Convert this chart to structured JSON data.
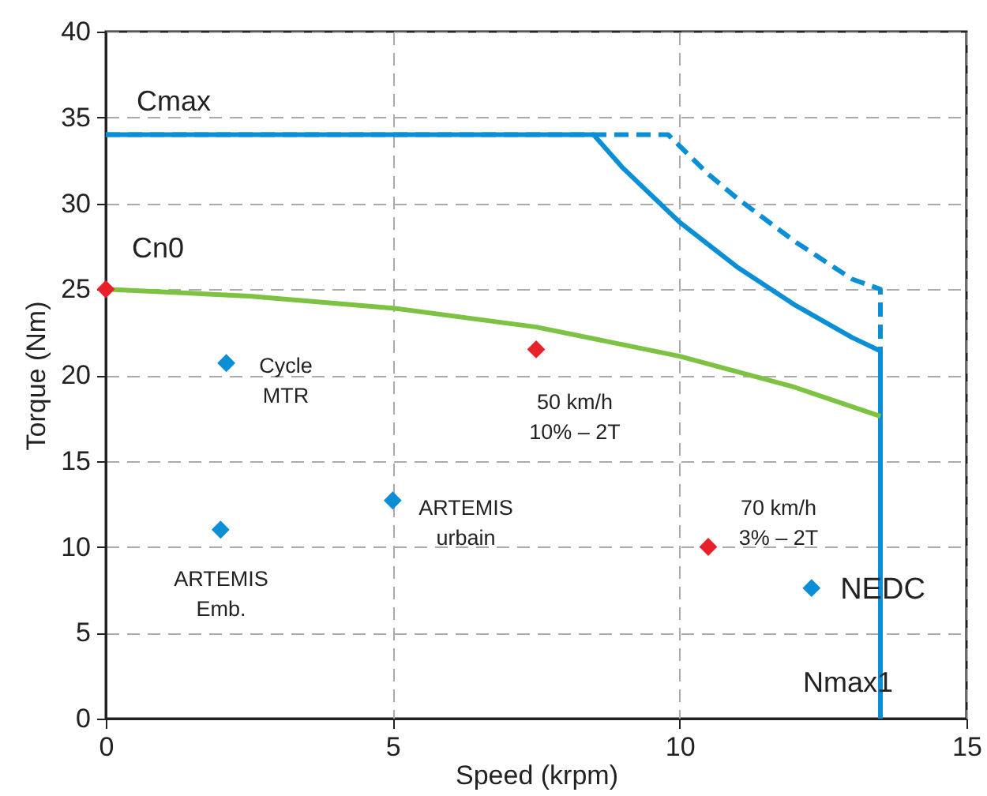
{
  "chart_data": {
    "type": "line",
    "xlabel": "Speed (krpm)",
    "ylabel": "Torque (Nm)",
    "xlim": [
      0,
      15
    ],
    "xticks": [
      0,
      5,
      10,
      15
    ],
    "ylim": [
      0,
      40
    ],
    "yticks": [
      0,
      5,
      10,
      15,
      20,
      25,
      30,
      35,
      40
    ],
    "grid": true,
    "series": [
      {
        "color": "#0a8fd6",
        "line_style": "solid",
        "marker": "none",
        "x": [
          0,
          8.5,
          9,
          10,
          11,
          12,
          13,
          13.5,
          13.5
        ],
        "values": [
          34,
          34,
          32.1,
          28.9,
          26.3,
          24.1,
          22.2,
          21.4,
          0
        ]
      },
      {
        "color": "#0a8fd6",
        "line_style": "dashed",
        "marker": "none",
        "x": [
          0,
          9.8,
          10.5,
          11,
          12,
          13,
          13.5,
          13.5
        ],
        "values": [
          34,
          34,
          31.7,
          30.3,
          27.8,
          25.6,
          25,
          0
        ]
      },
      {
        "color": "#7dc242",
        "line_style": "solid",
        "marker": "none",
        "x": [
          0,
          2.5,
          5,
          7.5,
          10,
          12,
          13.5
        ],
        "values": [
          25,
          24.6,
          23.9,
          22.8,
          21.1,
          19.3,
          17.6
        ]
      },
      {
        "type": "scatter",
        "color": "#0a8fd6",
        "marker": "diamond",
        "x": [
          2.1,
          2,
          5,
          12.3
        ],
        "values": [
          20.7,
          11,
          12.7,
          7.6
        ]
      },
      {
        "type": "scatter",
        "color": "#e8202a",
        "marker": "diamond",
        "x": [
          0,
          7.5,
          10.5
        ],
        "values": [
          25,
          21.5,
          10
        ]
      }
    ],
    "annotations": [
      "Cmax",
      "Cn0",
      "Nmax1",
      "NEDC",
      "Cycle\nMTR",
      "50 km/h\n10% – 2T",
      "ARTEMIS\nurbain",
      "ARTEMIS\nEmb.",
      "70 km/h\n3% – 2T"
    ]
  }
}
